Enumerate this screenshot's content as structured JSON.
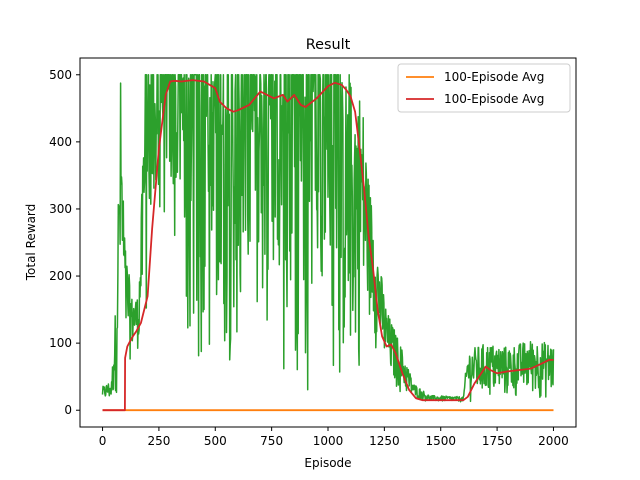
{
  "chart_data": {
    "type": "line",
    "title": "Result",
    "xlabel": "Episode",
    "ylabel": "Total Reward",
    "xlim": [
      -100,
      2100
    ],
    "ylim": [
      -25,
      525
    ],
    "xticks": [
      0,
      250,
      500,
      750,
      1000,
      1250,
      1500,
      1750,
      2000
    ],
    "yticks": [
      0,
      100,
      200,
      300,
      400,
      500
    ],
    "grid": false,
    "legend_position": "top-right",
    "legend": [
      "100-Episode Avg",
      "100-Episode Avg"
    ],
    "series": [
      {
        "name": "Total Reward",
        "color": "#2ca02c",
        "noisy": true,
        "envelope": [
          {
            "x": 0,
            "low": 12,
            "high": 35
          },
          {
            "x": 40,
            "low": 10,
            "high": 45
          },
          {
            "x": 60,
            "low": 15,
            "high": 170
          },
          {
            "x": 80,
            "low": 50,
            "high": 500
          },
          {
            "x": 100,
            "low": 60,
            "high": 250
          },
          {
            "x": 130,
            "low": 75,
            "high": 170
          },
          {
            "x": 160,
            "low": 90,
            "high": 170
          },
          {
            "x": 190,
            "low": 95,
            "high": 500
          },
          {
            "x": 240,
            "low": 200,
            "high": 500
          },
          {
            "x": 300,
            "low": 120,
            "high": 500
          },
          {
            "x": 350,
            "low": 40,
            "high": 500
          },
          {
            "x": 450,
            "low": 50,
            "high": 500
          },
          {
            "x": 500,
            "low": 30,
            "high": 500
          },
          {
            "x": 600,
            "low": 70,
            "high": 500
          },
          {
            "x": 700,
            "low": 20,
            "high": 500
          },
          {
            "x": 800,
            "low": 30,
            "high": 500
          },
          {
            "x": 900,
            "low": 25,
            "high": 500
          },
          {
            "x": 1000,
            "low": 20,
            "high": 500
          },
          {
            "x": 1100,
            "low": 15,
            "high": 500
          },
          {
            "x": 1150,
            "low": 50,
            "high": 480
          },
          {
            "x": 1180,
            "low": 120,
            "high": 350
          },
          {
            "x": 1220,
            "low": 80,
            "high": 240
          },
          {
            "x": 1260,
            "low": 40,
            "high": 150
          },
          {
            "x": 1320,
            "low": 20,
            "high": 100
          },
          {
            "x": 1380,
            "low": 15,
            "high": 40
          },
          {
            "x": 1450,
            "low": 12,
            "high": 22
          },
          {
            "x": 1600,
            "low": 12,
            "high": 20
          },
          {
            "x": 1620,
            "low": 10,
            "high": 90
          },
          {
            "x": 1700,
            "low": 10,
            "high": 100
          },
          {
            "x": 1800,
            "low": 10,
            "high": 95
          },
          {
            "x": 1900,
            "low": 15,
            "high": 105
          },
          {
            "x": 2000,
            "low": 10,
            "high": 100
          }
        ]
      },
      {
        "name": "100-Episode Avg",
        "color": "#ff7f0e",
        "noisy": false,
        "x": [
          0,
          99,
          100,
          2000
        ],
        "y": [
          0,
          0,
          0,
          0
        ],
        "hidden_under_red": true
      },
      {
        "name": "100-Episode Avg",
        "color": "#d62728",
        "noisy": false,
        "x": [
          0,
          50,
          99,
          100,
          110,
          130,
          150,
          170,
          200,
          220,
          250,
          280,
          300,
          320,
          350,
          400,
          450,
          500,
          520,
          550,
          580,
          600,
          650,
          700,
          730,
          760,
          800,
          820,
          850,
          880,
          900,
          950,
          1000,
          1030,
          1060,
          1080,
          1100,
          1120,
          1140,
          1160,
          1180,
          1200,
          1220,
          1240,
          1260,
          1280,
          1300,
          1330,
          1360,
          1390,
          1420,
          1450,
          1500,
          1550,
          1600,
          1620,
          1650,
          1680,
          1700,
          1720,
          1750,
          1800,
          1850,
          1900,
          1950,
          1980,
          2000
        ],
        "y": [
          0,
          0,
          0,
          78,
          95,
          108,
          118,
          130,
          170,
          270,
          390,
          470,
          490,
          491,
          490,
          492,
          490,
          480,
          460,
          450,
          445,
          447,
          455,
          475,
          470,
          465,
          470,
          460,
          470,
          455,
          452,
          465,
          483,
          488,
          485,
          478,
          468,
          445,
          390,
          330,
          260,
          210,
          150,
          110,
          95,
          98,
          85,
          55,
          30,
          18,
          15,
          15,
          15,
          15,
          15,
          20,
          40,
          55,
          65,
          60,
          55,
          58,
          60,
          62,
          70,
          75,
          75
        ]
      }
    ]
  }
}
